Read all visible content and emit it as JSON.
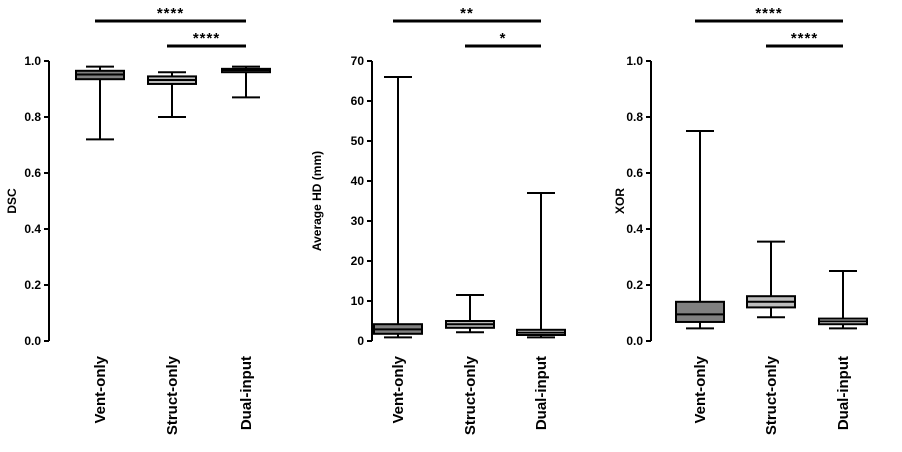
{
  "chart_data": [
    {
      "type": "boxplot",
      "title": "",
      "xlabel": "",
      "ylabel": "DSC",
      "ylim": [
        0,
        1.0
      ],
      "yticks": [
        "0.0",
        "0.2",
        "0.4",
        "0.6",
        "0.8",
        "1.0"
      ],
      "categories": [
        "Vent-only",
        "Struct-only",
        "Dual-input"
      ],
      "boxes": [
        {
          "min": 0.72,
          "q1": 0.935,
          "median": 0.952,
          "q3": 0.965,
          "max": 0.98,
          "fill": "#808080"
        },
        {
          "min": 0.8,
          "q1": 0.918,
          "median": 0.932,
          "q3": 0.945,
          "max": 0.96,
          "fill": "#bdbdbd"
        },
        {
          "min": 0.87,
          "q1": 0.96,
          "median": 0.967,
          "q3": 0.972,
          "max": 0.98,
          "fill": "#ececec"
        }
      ],
      "significance": [
        {
          "from": 0,
          "to": 2,
          "label": "****"
        },
        {
          "from": 1,
          "to": 2,
          "label": "****"
        }
      ]
    },
    {
      "type": "boxplot",
      "title": "",
      "xlabel": "",
      "ylabel": "Average HD (mm)",
      "ylim": [
        0,
        70
      ],
      "yticks": [
        "0",
        "10",
        "20",
        "30",
        "40",
        "50",
        "60",
        "70"
      ],
      "categories": [
        "Vent-only",
        "Struct-only",
        "Dual-input"
      ],
      "boxes": [
        {
          "min": 0.9,
          "q1": 1.8,
          "median": 2.9,
          "q3": 4.2,
          "max": 66,
          "fill": "#808080"
        },
        {
          "min": 2.2,
          "q1": 3.3,
          "median": 4.2,
          "q3": 5.0,
          "max": 11.5,
          "fill": "#bdbdbd"
        },
        {
          "min": 0.9,
          "q1": 1.5,
          "median": 2.1,
          "q3": 2.8,
          "max": 37,
          "fill": "#ececec"
        }
      ],
      "significance": [
        {
          "from": 0,
          "to": 2,
          "label": "**"
        },
        {
          "from": 1,
          "to": 2,
          "label": "*"
        }
      ]
    },
    {
      "type": "boxplot",
      "title": "",
      "xlabel": "",
      "ylabel": "XOR",
      "ylim": [
        0,
        1.0
      ],
      "yticks": [
        "0.0",
        "0.2",
        "0.4",
        "0.6",
        "0.8",
        "1.0"
      ],
      "categories": [
        "Vent-only",
        "Struct-only",
        "Dual-input"
      ],
      "boxes": [
        {
          "min": 0.045,
          "q1": 0.068,
          "median": 0.095,
          "q3": 0.14,
          "max": 0.75,
          "fill": "#808080"
        },
        {
          "min": 0.085,
          "q1": 0.12,
          "median": 0.14,
          "q3": 0.16,
          "max": 0.355,
          "fill": "#bdbdbd"
        },
        {
          "min": 0.045,
          "q1": 0.06,
          "median": 0.07,
          "q3": 0.08,
          "max": 0.25,
          "fill": "#ececec"
        }
      ],
      "significance": [
        {
          "from": 0,
          "to": 2,
          "label": "****"
        },
        {
          "from": 1,
          "to": 2,
          "label": "****"
        }
      ]
    }
  ]
}
